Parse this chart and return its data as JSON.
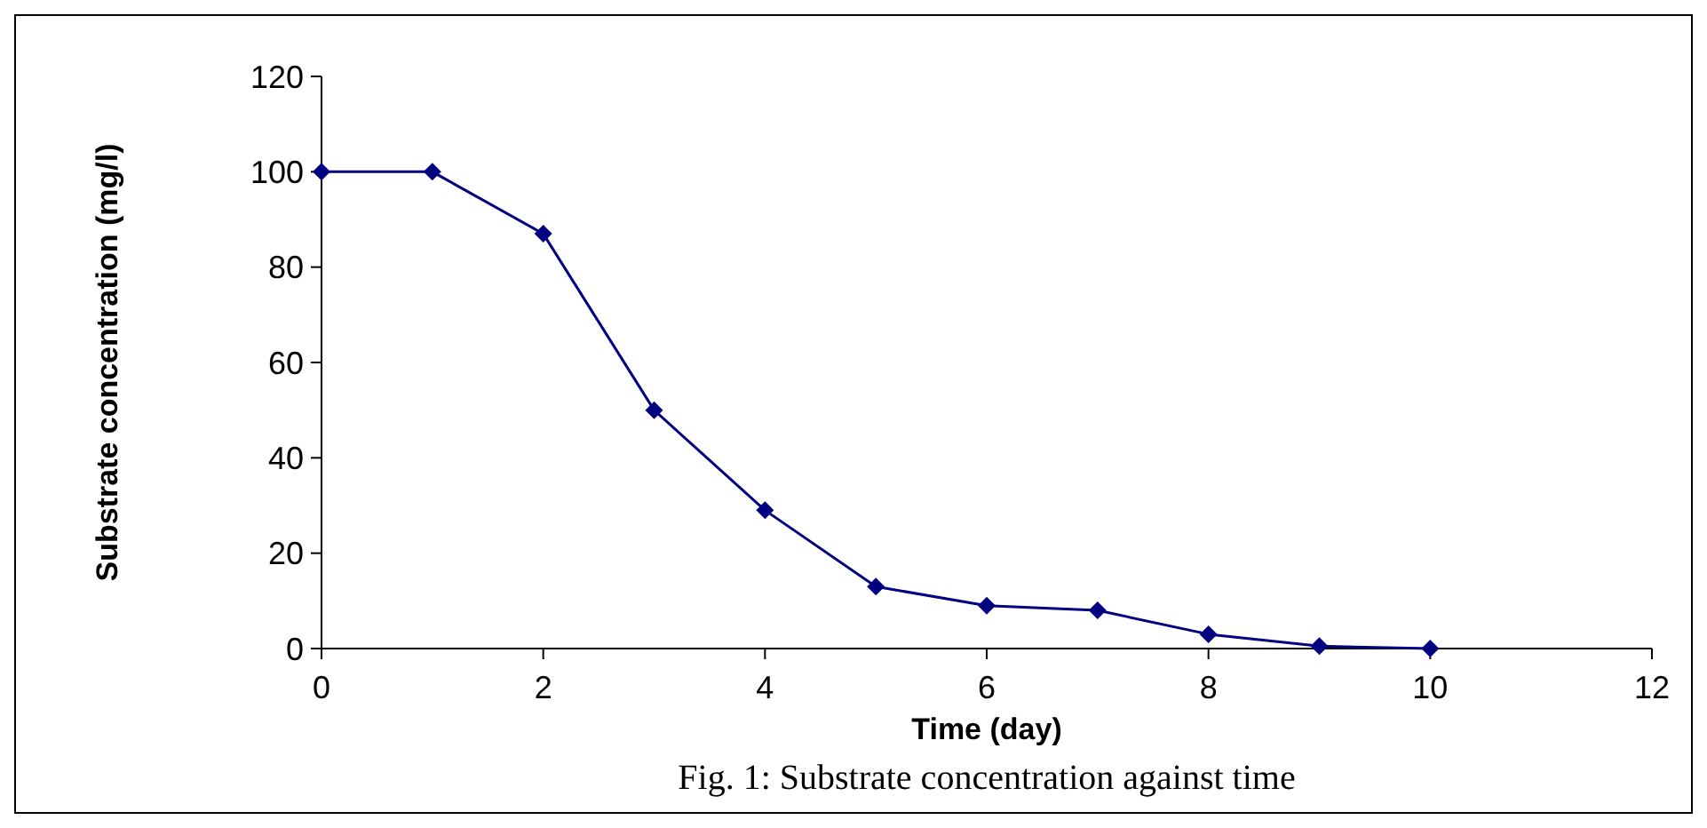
{
  "chart_data": {
    "type": "line",
    "xlabel": "Time (day)",
    "ylabel": "Substrate concentration (mg/l)",
    "annotations": [
      "Fig. 1: Substrate concentration against time"
    ],
    "x": [
      0,
      1,
      2,
      3,
      4,
      5,
      6,
      7,
      8,
      9,
      10
    ],
    "series": [
      {
        "color": "#000080",
        "values": [
          100,
          100,
          87,
          50,
          29,
          13,
          9,
          8,
          3,
          0.5,
          0
        ]
      }
    ],
    "xlim": [
      0,
      12
    ],
    "xticks": [
      0,
      2,
      4,
      6,
      8,
      10,
      12
    ],
    "ylim": [
      0,
      120
    ],
    "yticks": [
      0,
      20,
      40,
      60,
      80,
      100,
      120
    ],
    "grid": false,
    "marker": "diamond",
    "line_style": "solid"
  }
}
